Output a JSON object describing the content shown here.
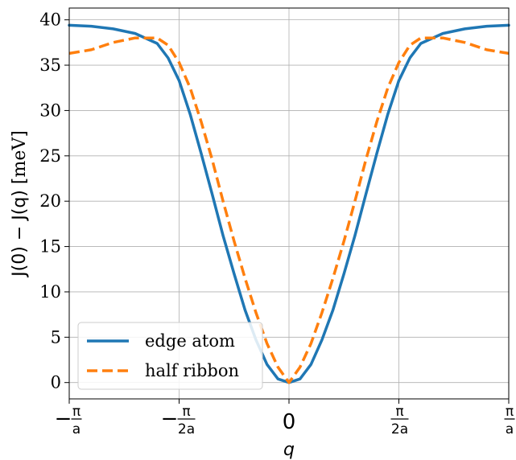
{
  "chart_data": {
    "type": "line",
    "title": "",
    "xlabel": "q",
    "ylabel_parts": [
      "J(0) − J(q) [",
      "meV",
      "]"
    ],
    "xlim": [
      -1.0,
      1.0
    ],
    "ylim": [
      -1.8,
      41.3
    ],
    "x_ticks": [
      {
        "value": -1.0,
        "sign": "−",
        "num": "π",
        "den": "a"
      },
      {
        "value": -0.5,
        "sign": "−",
        "num": "π",
        "den": "2a"
      },
      {
        "value": 0.0,
        "sign": "",
        "num": "0",
        "den": ""
      },
      {
        "value": 0.5,
        "sign": "",
        "num": "π",
        "den": "2a"
      },
      {
        "value": 1.0,
        "sign": "",
        "num": "π",
        "den": "a"
      }
    ],
    "y_ticks": [
      0,
      5,
      10,
      15,
      20,
      25,
      30,
      35,
      40
    ],
    "grid": true,
    "legend_position": "lower-left",
    "x_unit_note": "x values in units of π/a",
    "series": [
      {
        "name": "edge atom",
        "color": "#1f77b4",
        "style": "solid",
        "x": [
          -1.0,
          -0.9,
          -0.8,
          -0.7,
          -0.6,
          -0.55,
          -0.5,
          -0.45,
          -0.4,
          -0.35,
          -0.3,
          -0.25,
          -0.2,
          -0.15,
          -0.1,
          -0.05,
          0.0,
          0.05,
          0.1,
          0.15,
          0.2,
          0.25,
          0.3,
          0.35,
          0.4,
          0.45,
          0.5,
          0.55,
          0.6,
          0.7,
          0.8,
          0.9,
          1.0
        ],
        "y": [
          39.4,
          39.3,
          39.0,
          38.5,
          37.4,
          35.8,
          33.3,
          29.6,
          25.3,
          20.8,
          16.2,
          12.0,
          8.0,
          4.7,
          2.0,
          0.4,
          0.0,
          0.4,
          2.0,
          4.7,
          8.0,
          12.0,
          16.2,
          20.8,
          25.3,
          29.6,
          33.3,
          35.8,
          37.4,
          38.5,
          39.0,
          39.3,
          39.4
        ]
      },
      {
        "name": "half ribbon",
        "color": "#ff7f0e",
        "style": "dashed",
        "x": [
          -1.0,
          -0.9,
          -0.8,
          -0.7,
          -0.6,
          -0.55,
          -0.5,
          -0.45,
          -0.4,
          -0.35,
          -0.3,
          -0.25,
          -0.2,
          -0.15,
          -0.1,
          -0.05,
          0.0,
          0.05,
          0.1,
          0.15,
          0.2,
          0.25,
          0.3,
          0.35,
          0.4,
          0.45,
          0.5,
          0.55,
          0.6,
          0.7,
          0.8,
          0.9,
          1.0
        ],
        "y": [
          36.3,
          36.7,
          37.5,
          38.0,
          38.0,
          37.2,
          35.3,
          32.5,
          28.8,
          24.6,
          20.0,
          15.6,
          11.5,
          7.7,
          4.3,
          1.7,
          0.0,
          1.7,
          4.3,
          7.7,
          11.5,
          15.6,
          20.0,
          24.6,
          28.8,
          32.5,
          35.3,
          37.2,
          38.0,
          38.0,
          37.5,
          36.7,
          36.3
        ]
      }
    ]
  }
}
